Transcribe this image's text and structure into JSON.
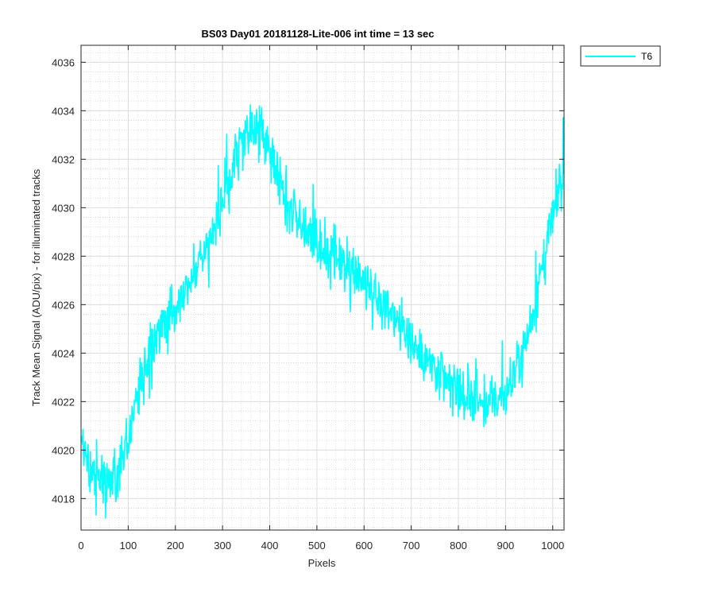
{
  "chart_data": {
    "type": "line",
    "title": "BS03 Day01 20181128-Lite-006 int time = 13 sec",
    "xlabel": "Pixels",
    "ylabel": "Track Mean Signal (ADU/pix) - for illuminated tracks",
    "xlim": [
      0,
      1024
    ],
    "ylim": [
      4016.7,
      4036.7
    ],
    "x_ticks": [
      0,
      100,
      200,
      300,
      400,
      500,
      600,
      700,
      800,
      900,
      1000
    ],
    "y_ticks": [
      4018,
      4020,
      4022,
      4024,
      4026,
      4028,
      4030,
      4032,
      4034,
      4036
    ],
    "grid": true,
    "minor_grid": true,
    "legend_position": "outside-top-right",
    "series": [
      {
        "name": "T6",
        "color": "#00ffff",
        "x_start": 1,
        "x_step": 1,
        "count": 1024,
        "trend_x": [
          0,
          40,
          75,
          100,
          130,
          160,
          200,
          250,
          300,
          330,
          370,
          400,
          430,
          460,
          500,
          550,
          600,
          650,
          700,
          750,
          800,
          850,
          900,
          950,
          1000,
          1024
        ],
        "trend_y": [
          4020.0,
          4018.8,
          4019.0,
          4020.6,
          4023.0,
          4024.6,
          4026.0,
          4027.8,
          4030.0,
          4032.3,
          4033.4,
          4032.5,
          4030.8,
          4029.5,
          4028.3,
          4027.5,
          4027.0,
          4026.0,
          4024.5,
          4023.2,
          4022.3,
          4021.9,
          4022.2,
          4025.0,
          4029.5,
          4031.5
        ],
        "noise_amplitude": 0.55,
        "noise_seed": 4242
      }
    ]
  }
}
